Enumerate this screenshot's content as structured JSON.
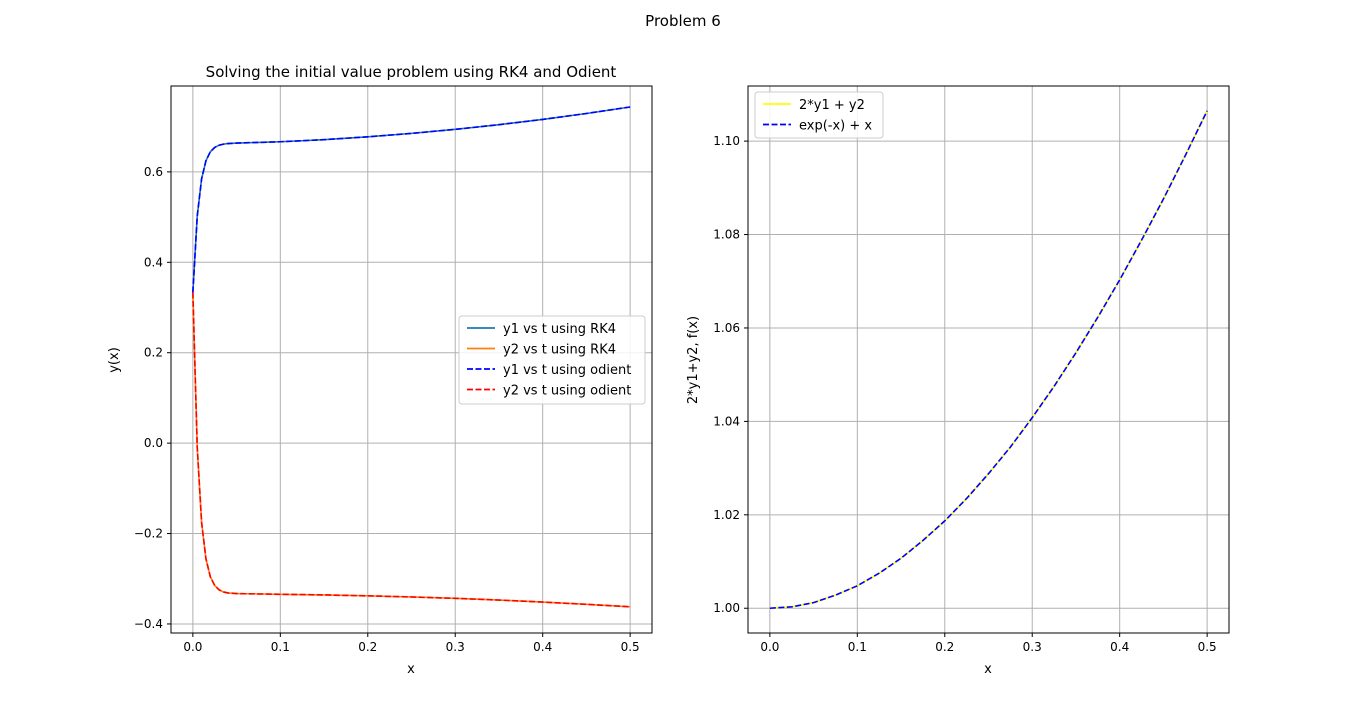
{
  "figure": {
    "suptitle": "Problem 6"
  },
  "chart_data": [
    {
      "type": "line",
      "title": "Solving the initial value problem using RK4 and Odient",
      "xlabel": "x",
      "ylabel": "y(x)",
      "xlim": [
        -0.025,
        0.525
      ],
      "ylim": [
        -0.42,
        0.79
      ],
      "xticks": [
        0.0,
        0.1,
        0.2,
        0.3,
        0.4,
        0.5
      ],
      "xtick_labels": [
        "0.0",
        "0.1",
        "0.2",
        "0.3",
        "0.4",
        "0.5"
      ],
      "yticks": [
        -0.4,
        -0.2,
        0.0,
        0.2,
        0.4,
        0.6
      ],
      "ytick_labels": [
        "−0.4",
        "−0.2",
        "0.0",
        "0.2",
        "0.4",
        "0.6"
      ],
      "grid": true,
      "legend_position": "center-right",
      "series": [
        {
          "name": "y1 vs t using RK4",
          "color": "#1f77b4",
          "dash": "solid",
          "x": [
            0,
            0.005,
            0.01,
            0.015,
            0.02,
            0.025,
            0.03,
            0.035,
            0.04,
            0.05,
            0.06,
            0.08,
            0.1,
            0.15,
            0.2,
            0.25,
            0.3,
            0.35,
            0.4,
            0.45,
            0.5
          ],
          "y": [
            0.3333,
            0.5024,
            0.5847,
            0.6249,
            0.6445,
            0.6541,
            0.659,
            0.6614,
            0.6627,
            0.6638,
            0.6644,
            0.6655,
            0.6667,
            0.6713,
            0.6776,
            0.6852,
            0.6941,
            0.7044,
            0.7161,
            0.7292,
            0.7436
          ]
        },
        {
          "name": "y2 vs t using RK4",
          "color": "#ff7f0e",
          "dash": "solid",
          "x": [
            0,
            0.005,
            0.01,
            0.015,
            0.02,
            0.025,
            0.03,
            0.035,
            0.04,
            0.05,
            0.06,
            0.08,
            0.1,
            0.15,
            0.2,
            0.25,
            0.3,
            0.35,
            0.4,
            0.45,
            0.5
          ],
          "y": [
            0.3333,
            -0.0098,
            -0.1757,
            -0.2564,
            -0.2958,
            -0.315,
            -0.3245,
            -0.3292,
            -0.3314,
            -0.3328,
            -0.3332,
            -0.3337,
            -0.3344,
            -0.3358,
            -0.3378,
            -0.3403,
            -0.3433,
            -0.3471,
            -0.3516,
            -0.3566,
            -0.362
          ]
        },
        {
          "name": "y1 vs t using odient",
          "color": "#0000ff",
          "dash": "dashed",
          "x": [
            0,
            0.005,
            0.01,
            0.015,
            0.02,
            0.025,
            0.03,
            0.035,
            0.04,
            0.05,
            0.06,
            0.08,
            0.1,
            0.15,
            0.2,
            0.25,
            0.3,
            0.35,
            0.4,
            0.45,
            0.5
          ],
          "y": [
            0.3333,
            0.5024,
            0.5847,
            0.6249,
            0.6445,
            0.6541,
            0.659,
            0.6614,
            0.6627,
            0.6638,
            0.6644,
            0.6655,
            0.6667,
            0.6713,
            0.6776,
            0.6852,
            0.6941,
            0.7044,
            0.7161,
            0.7292,
            0.7436
          ]
        },
        {
          "name": "y2 vs t using odient",
          "color": "#ff0000",
          "dash": "dashed",
          "x": [
            0,
            0.005,
            0.01,
            0.015,
            0.02,
            0.025,
            0.03,
            0.035,
            0.04,
            0.05,
            0.06,
            0.08,
            0.1,
            0.15,
            0.2,
            0.25,
            0.3,
            0.35,
            0.4,
            0.45,
            0.5
          ],
          "y": [
            0.3333,
            -0.0098,
            -0.1757,
            -0.2564,
            -0.2958,
            -0.315,
            -0.3245,
            -0.3292,
            -0.3314,
            -0.3328,
            -0.3332,
            -0.3337,
            -0.3344,
            -0.3358,
            -0.3378,
            -0.3403,
            -0.3433,
            -0.3471,
            -0.3516,
            -0.3566,
            -0.362
          ]
        }
      ]
    },
    {
      "type": "line",
      "title": "",
      "xlabel": "x",
      "ylabel": "2*y1+y2, f(x)",
      "xlim": [
        -0.025,
        0.525
      ],
      "ylim": [
        0.9947,
        1.1118
      ],
      "xticks": [
        0.0,
        0.1,
        0.2,
        0.3,
        0.4,
        0.5
      ],
      "xtick_labels": [
        "0.0",
        "0.1",
        "0.2",
        "0.3",
        "0.4",
        "0.5"
      ],
      "yticks": [
        1.0,
        1.02,
        1.04,
        1.06,
        1.08,
        1.1
      ],
      "ytick_labels": [
        "1.00",
        "1.02",
        "1.04",
        "1.06",
        "1.08",
        "1.10"
      ],
      "grid": true,
      "legend_position": "upper-left",
      "series": [
        {
          "name": "2*y1 + y2",
          "color": "#ffff00",
          "dash": "solid",
          "x": [
            0,
            0.025,
            0.05,
            0.075,
            0.1,
            0.125,
            0.15,
            0.175,
            0.2,
            0.225,
            0.25,
            0.275,
            0.3,
            0.325,
            0.35,
            0.375,
            0.4,
            0.425,
            0.45,
            0.475,
            0.5
          ],
          "y": [
            1.0,
            1.0003,
            1.0012,
            1.0028,
            1.0048,
            1.0075,
            1.0107,
            1.0145,
            1.0187,
            1.0235,
            1.0288,
            1.0345,
            1.0408,
            1.0475,
            1.0547,
            1.0623,
            1.0703,
            1.0788,
            1.0876,
            1.0969,
            1.1065
          ]
        },
        {
          "name": "exp(-x) + x",
          "color": "#0000ff",
          "dash": "dashed",
          "x": [
            0,
            0.025,
            0.05,
            0.075,
            0.1,
            0.125,
            0.15,
            0.175,
            0.2,
            0.225,
            0.25,
            0.275,
            0.3,
            0.325,
            0.35,
            0.375,
            0.4,
            0.425,
            0.45,
            0.475,
            0.5
          ],
          "y": [
            1.0,
            1.0003,
            1.0012,
            1.0028,
            1.0048,
            1.0075,
            1.0107,
            1.0145,
            1.0187,
            1.0235,
            1.0288,
            1.0345,
            1.0408,
            1.0475,
            1.0547,
            1.0623,
            1.0703,
            1.0788,
            1.0876,
            1.0969,
            1.1065
          ]
        }
      ]
    }
  ]
}
